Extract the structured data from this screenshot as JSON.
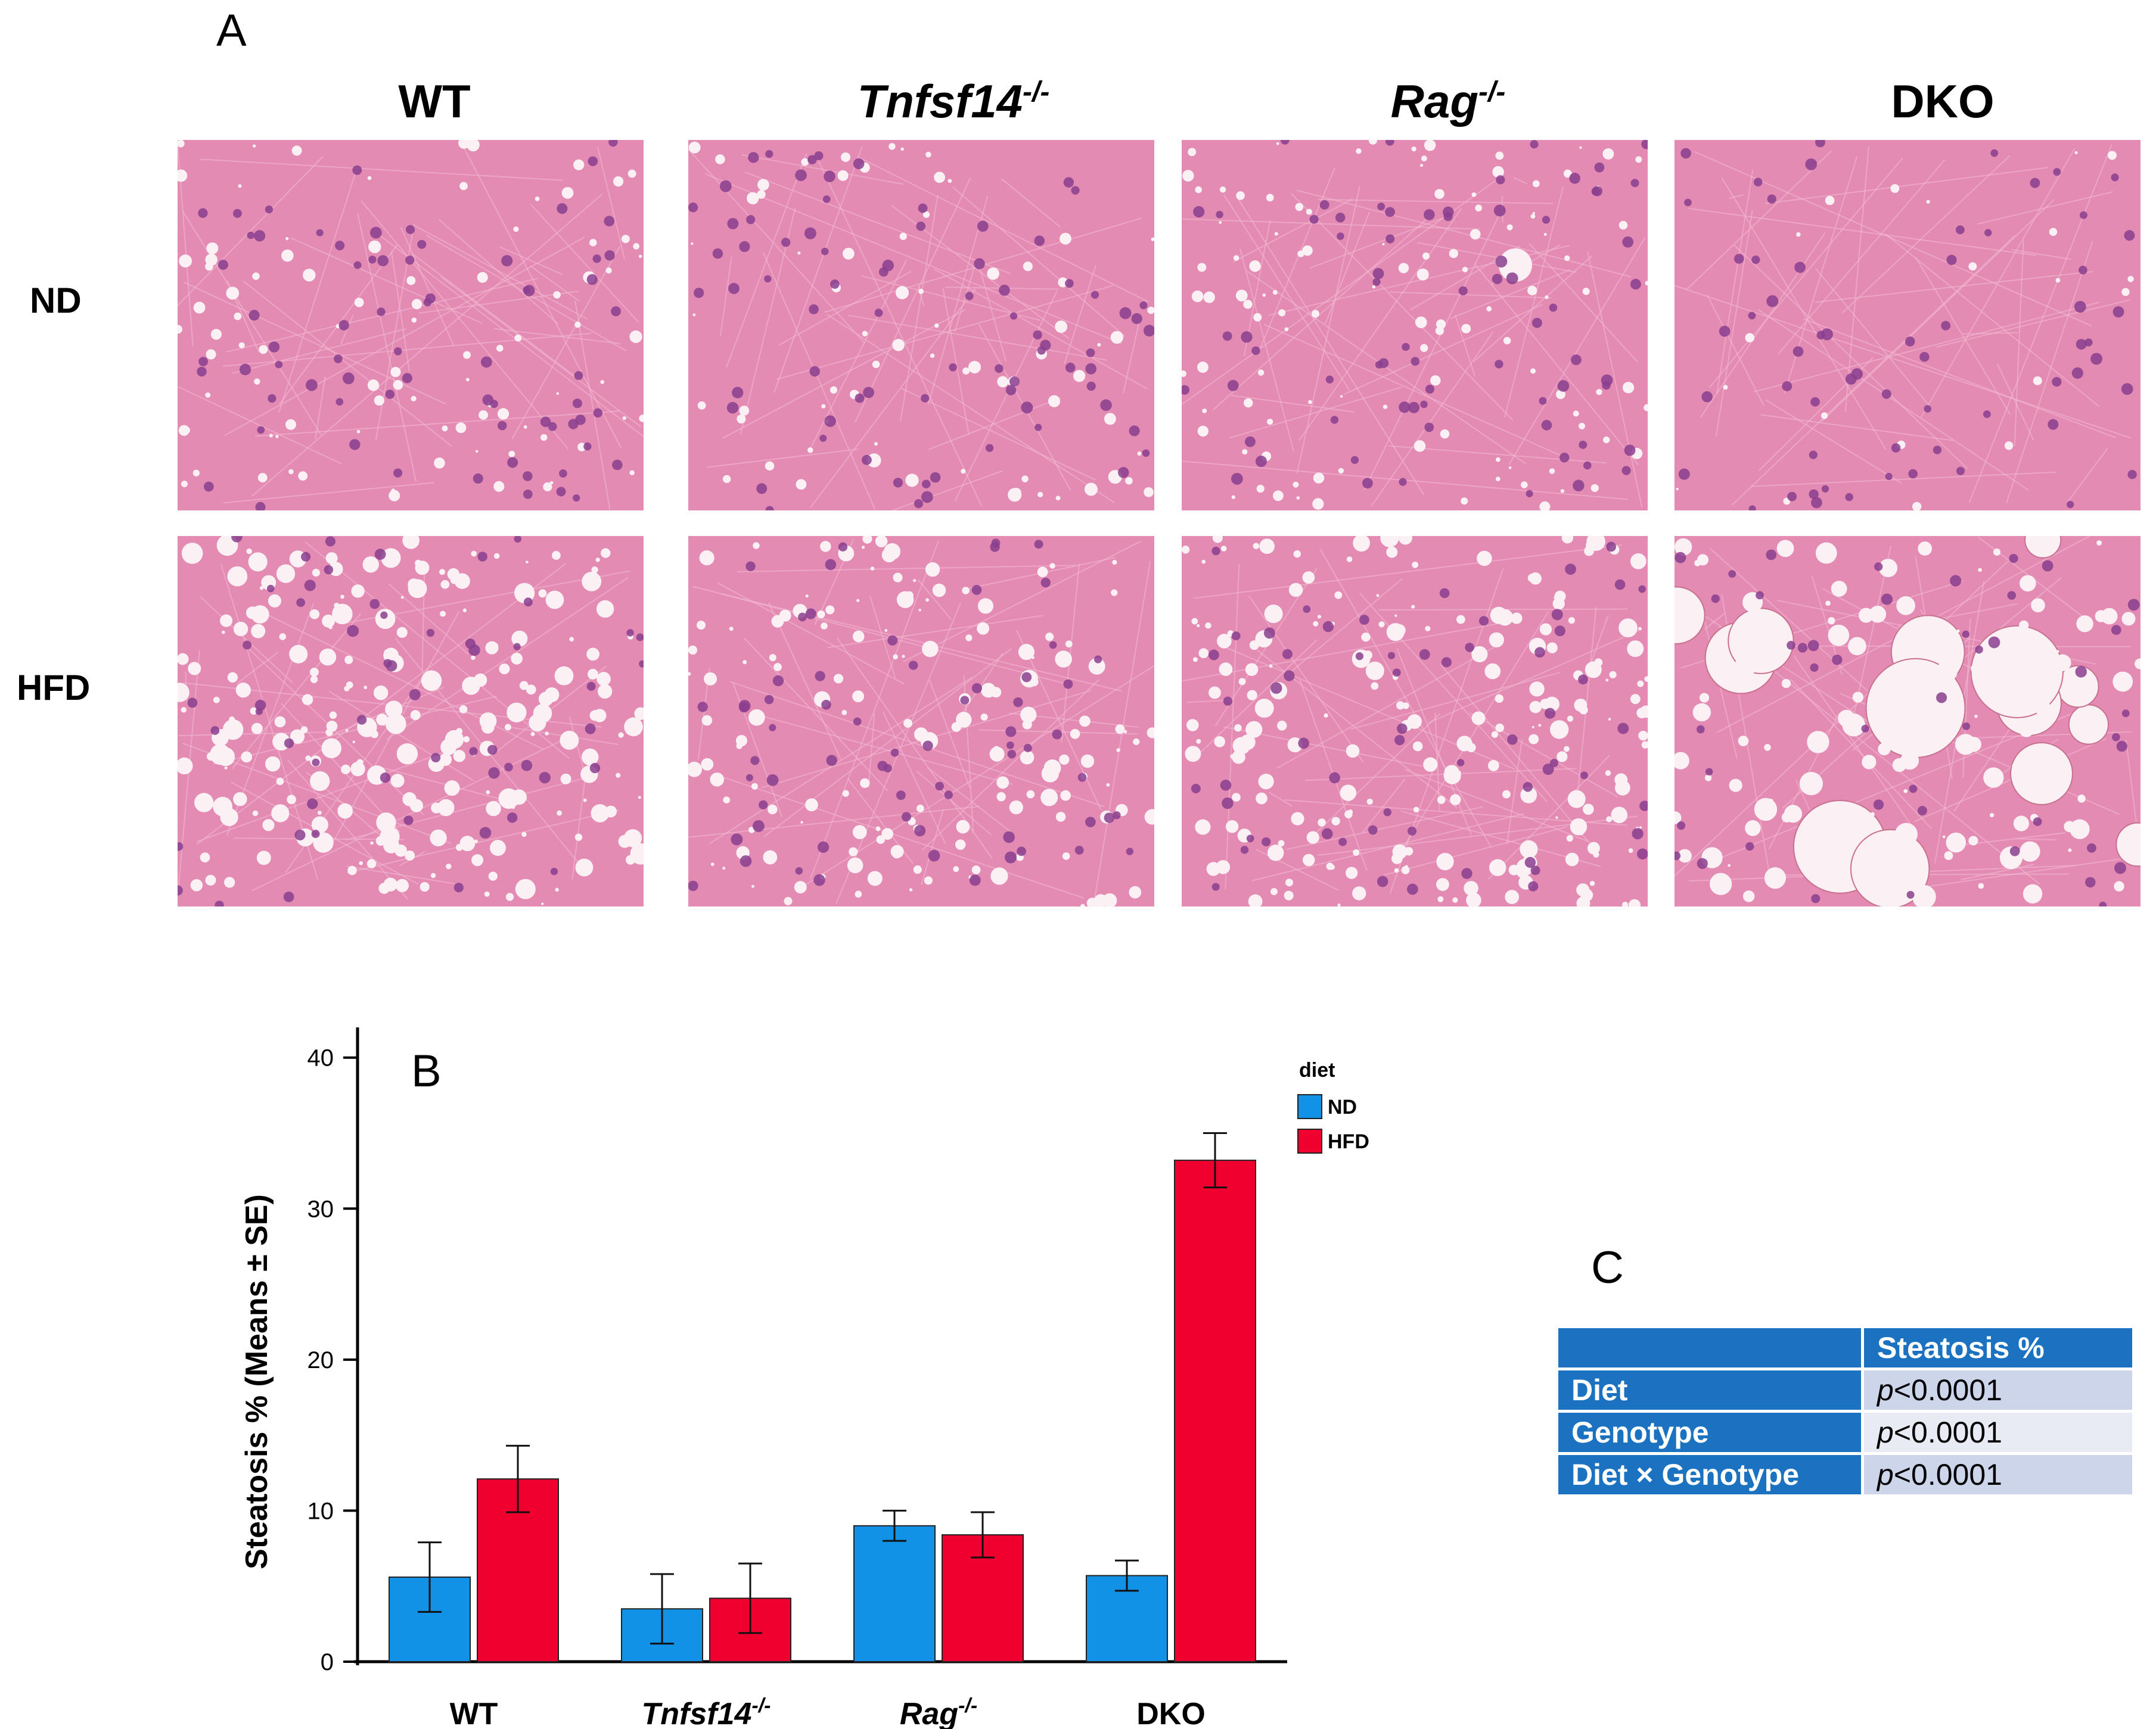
{
  "panel_a": {
    "letter": "A",
    "columns": [
      {
        "name": "WT",
        "italic": false,
        "superscript": ""
      },
      {
        "name": "Tnfsf14",
        "italic": true,
        "superscript": "-/-"
      },
      {
        "name": "Rag",
        "italic": true,
        "superscript": "-/-"
      },
      {
        "name": "DKO",
        "italic": false,
        "superscript": ""
      }
    ],
    "rows": [
      {
        "name": "ND"
      },
      {
        "name": "HFD"
      }
    ],
    "tissue_colors": {
      "stroma": "#e48bb3",
      "nucleus": "#8a3e8e",
      "vacuole": "#fbf1f5"
    }
  },
  "panel_b": {
    "letter": "B",
    "legend_title": "diet",
    "colors": {
      "ND": "#1192e6",
      "HFD": "#f0002f"
    }
  },
  "chart_data": {
    "type": "bar",
    "categories": [
      "WT",
      "Tnfsf14",
      "Rag",
      "DKO"
    ],
    "category_superscripts": [
      "",
      "-/-",
      "-/-",
      ""
    ],
    "series": [
      {
        "name": "ND",
        "values": [
          5.6,
          3.5,
          9.0,
          5.7
        ],
        "se": [
          2.3,
          2.3,
          1.0,
          1.0
        ]
      },
      {
        "name": "HFD",
        "values": [
          12.1,
          4.2,
          8.4,
          33.2
        ],
        "se": [
          2.2,
          2.3,
          1.5,
          1.8
        ]
      }
    ],
    "ylabel": "Steatosis % (Means ± SE)",
    "ylim": [
      0,
      42
    ],
    "yticks": [
      "0",
      "10",
      "20",
      "30",
      "40"
    ],
    "legend": {
      "title": "diet",
      "placement": "top-right"
    }
  },
  "panel_c": {
    "letter": "C",
    "header": "Steatosis %",
    "rows": [
      {
        "label": "Diet",
        "p_prefix": "p",
        "p_value": "<0.0001"
      },
      {
        "label": "Genotype",
        "p_prefix": "p",
        "p_value": "<0.0001"
      },
      {
        "label": "Diet × Genotype",
        "p_prefix": "p",
        "p_value": "<0.0001"
      }
    ]
  }
}
